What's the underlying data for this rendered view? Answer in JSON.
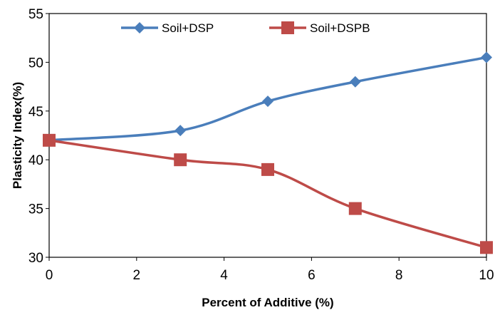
{
  "chart_data": {
    "type": "line",
    "title": "",
    "xlabel": "Percent of Additive (%)",
    "ylabel": "Plasticity Index(%)",
    "xlim": [
      0,
      10
    ],
    "ylim": [
      30,
      55
    ],
    "xticks": [
      0,
      2,
      4,
      6,
      8,
      10
    ],
    "yticks": [
      30,
      35,
      40,
      45,
      50,
      55
    ],
    "grid": false,
    "legend": "top",
    "series": [
      {
        "name": "Soil+DSP",
        "color": "#4a7ebb",
        "marker": "diamond",
        "x": [
          0,
          3,
          5,
          7,
          10
        ],
        "y": [
          42,
          43,
          46,
          48,
          50.5
        ]
      },
      {
        "name": "Soil+DSPB",
        "color": "#be4b48",
        "marker": "square",
        "x": [
          0,
          3,
          5,
          7,
          10
        ],
        "y": [
          42,
          40,
          39,
          35,
          31
        ]
      }
    ]
  }
}
